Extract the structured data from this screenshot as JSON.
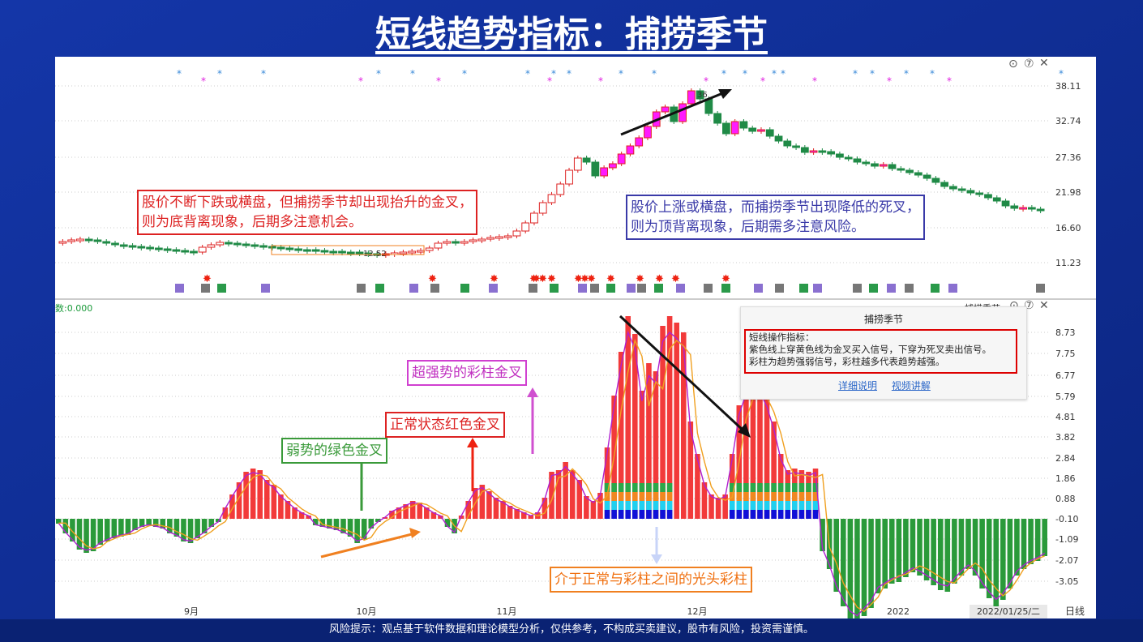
{
  "title": "短线趋势指标：捕捞季节",
  "footer": "风险提示：观点基于软件数据和理论模型分析，仅供参考，不构成买卖建议，股市有风险，投资需谨慎。",
  "colors": {
    "bg": "#0d2a8c",
    "up": "#e23b3b",
    "down": "#1f8a46",
    "magenta": "#ff1aff",
    "orange_line": "#f0a020",
    "purple_line": "#b020d0"
  },
  "annotations": {
    "bottom_divergence": [
      "股价不断下跌或横盘，但捕捞季节却出现抬升的金叉，",
      "则为底背离现象，后期多注意机会。"
    ],
    "top_divergence": [
      "股价上涨或横盘，而捕捞季节出现降低的死叉，",
      "则为顶背离现象，后期需多注意风险。"
    ],
    "super_strong": "超强势的彩柱金叉",
    "normal_red": "正常状态红色金叉",
    "weak_green": "弱势的绿色金叉",
    "bald_color": "介于正常与彩柱之间的光头彩柱"
  },
  "price_panel": {
    "y_ticks": [
      "38.11",
      "32.74",
      "27.36",
      "21.98",
      "16.60",
      "11.23"
    ],
    "high_label": "36",
    "low_label": "12.52",
    "toolbar_icons": [
      "settings-icon",
      "help-icon",
      "close-icon"
    ]
  },
  "indicator_panel": {
    "label": "数:0.000",
    "name": "捕捞季节",
    "y_ticks": [
      "8.73",
      "7.75",
      "6.77",
      "5.79",
      "4.81",
      "3.82",
      "2.84",
      "1.86",
      "0.88",
      "-0.10",
      "-1.09",
      "-2.07",
      "-3.05"
    ],
    "popup": {
      "title": "捕捞季节",
      "lines": [
        "短线操作指标：",
        "紫色线上穿黄色线为金叉买入信号，下穿为死叉卖出信号。",
        "彩柱为趋势强弱信号，彩柱越多代表趋势越强。"
      ],
      "links": [
        "详细说明",
        "视频讲解"
      ]
    }
  },
  "x_axis": {
    "months": [
      "9月",
      "10月",
      "11月",
      "12月",
      "2022"
    ],
    "date": "2022/01/25/二",
    "period": "日线"
  }
}
